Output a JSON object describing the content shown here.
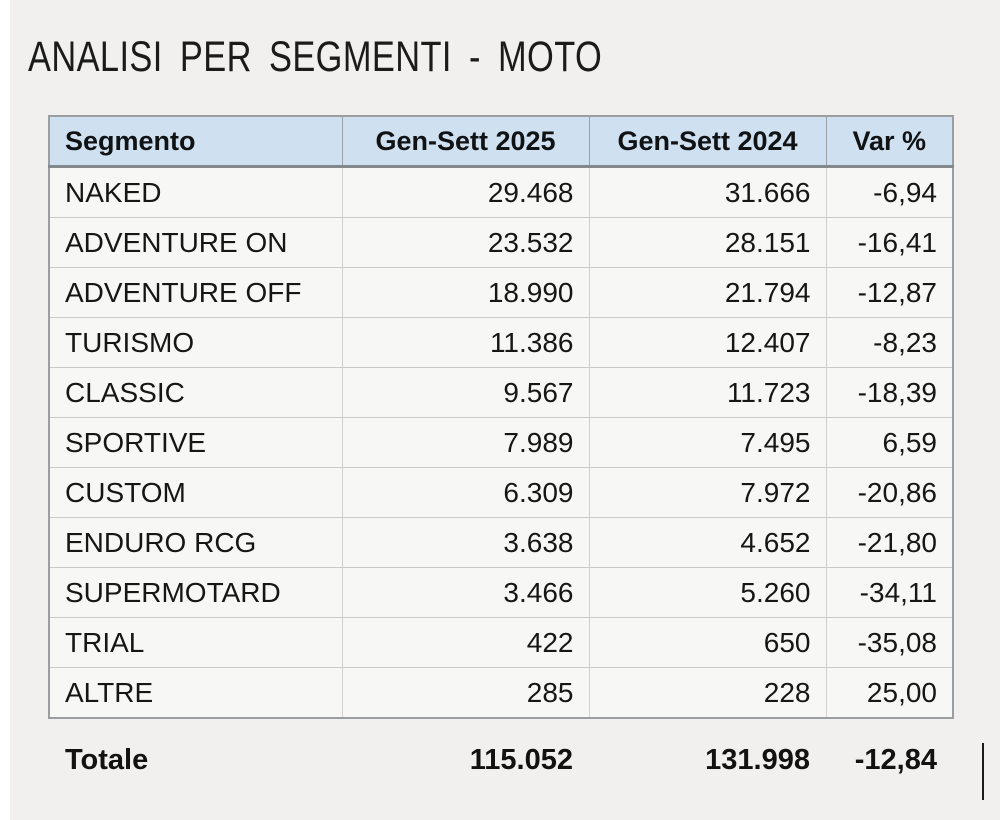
{
  "title": "ANALISI  PER  SEGMENTI - MOTO",
  "table": {
    "columns": [
      "Segmento",
      "Gen-Sett 2025",
      "Gen-Sett 2024",
      "Var %"
    ],
    "rows": [
      {
        "segment": "NAKED",
        "y2025": "29.468",
        "y2024": "31.666",
        "var": "-6,94"
      },
      {
        "segment": "ADVENTURE ON",
        "y2025": "23.532",
        "y2024": "28.151",
        "var": "-16,41"
      },
      {
        "segment": "ADVENTURE OFF",
        "y2025": "18.990",
        "y2024": "21.794",
        "var": "-12,87"
      },
      {
        "segment": "TURISMO",
        "y2025": "11.386",
        "y2024": "12.407",
        "var": "-8,23"
      },
      {
        "segment": "CLASSIC",
        "y2025": "9.567",
        "y2024": "11.723",
        "var": "-18,39"
      },
      {
        "segment": "SPORTIVE",
        "y2025": "7.989",
        "y2024": "7.495",
        "var": "6,59"
      },
      {
        "segment": "CUSTOM",
        "y2025": "6.309",
        "y2024": "7.972",
        "var": "-20,86"
      },
      {
        "segment": "ENDURO RCG",
        "y2025": "3.638",
        "y2024": "4.652",
        "var": "-21,80"
      },
      {
        "segment": "SUPERMOTARD",
        "y2025": "3.466",
        "y2024": "5.260",
        "var": "-34,11"
      },
      {
        "segment": "TRIAL",
        "y2025": "422",
        "y2024": "650",
        "var": "-35,08"
      },
      {
        "segment": "ALTRE",
        "y2025": "285",
        "y2024": "228",
        "var": "25,00"
      }
    ],
    "total": {
      "label": "Totale",
      "y2025": "115.052",
      "y2024": "131.998",
      "var": "-12,84"
    }
  },
  "colors": {
    "page_bg": "#f1f0ee",
    "cell_bg": "#f7f7f5",
    "header_bg": "#cfe0f0",
    "outer_border": "#9b9ea1",
    "header_border": "#83888d",
    "header_sep": "#9aa0a6",
    "row_border": "#cbcac8",
    "col_border": "#d1d0ce",
    "text": "#161616"
  }
}
